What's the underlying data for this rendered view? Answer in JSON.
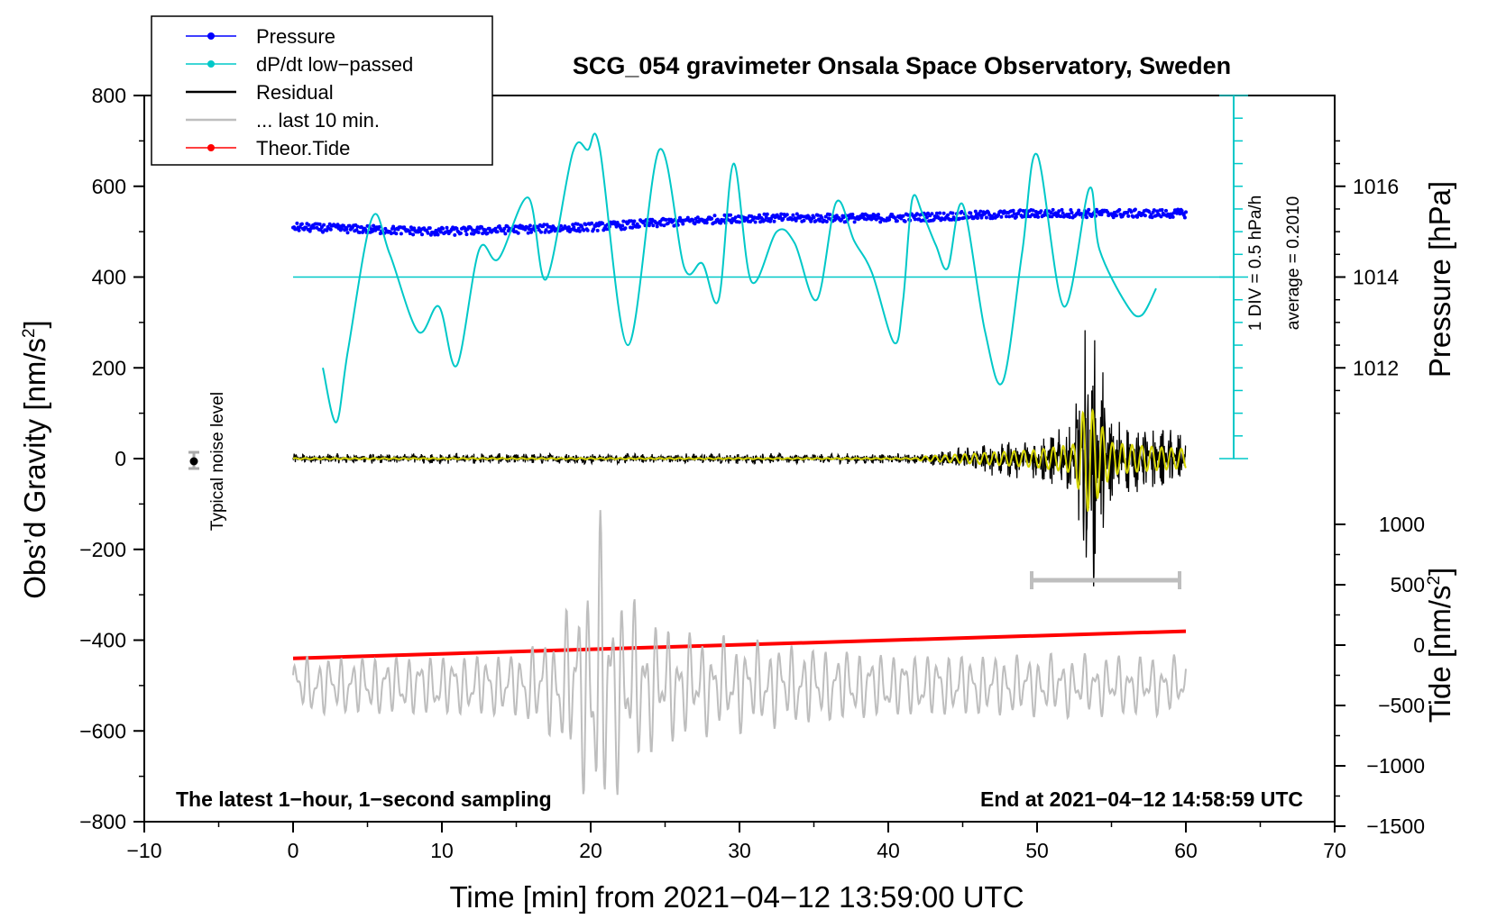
{
  "chart_data": {
    "type": "line",
    "title": "SCG_054 gravimeter Onsala Space Observatory, Sweden",
    "xlabel": "Time [min] from 2021−04−12 13:59:00 UTC",
    "ylabel_left": "Obs’d Gravity [nm/s",
    "ylabel_left_sup": "2",
    "ylabel_left_close": "]",
    "ylabel_right_pressure": "Pressure [hPa]",
    "ylabel_right_tide": "Tide [nm/s",
    "ylabel_right_tide_sup": "2",
    "ylabel_right_tide_close": "]",
    "xlim": [
      -10,
      70
    ],
    "ylim_left": [
      -800,
      800
    ],
    "x_ticks": [
      "−10",
      "0",
      "10",
      "20",
      "30",
      "40",
      "50",
      "60",
      "70"
    ],
    "y_ticks_left": [
      "800",
      "600",
      "400",
      "200",
      "0",
      "−200",
      "−400",
      "−600",
      "−800"
    ],
    "pressure_ticks": [
      "1016",
      "1014",
      "1012"
    ],
    "tide_ticks": [
      "1000",
      "500",
      "0",
      "−500",
      "−1000",
      "−1500"
    ],
    "legend": [
      {
        "label": "Pressure",
        "color": "#0000ff",
        "marker": true
      },
      {
        "label": "dP/dt low−passed",
        "color": "#00c8c8",
        "marker": true
      },
      {
        "label": "Residual",
        "color": "#000000",
        "marker": false
      },
      {
        "label": "... last 10 min.",
        "color": "#bebebe",
        "marker": false
      },
      {
        "label": "Theor.Tide",
        "color": "#ff0000",
        "marker": true
      }
    ],
    "annotations": {
      "noise_label": "Typical noise level",
      "div_label": "1 DIV = 0.5 hPa/h",
      "average_label": "average = 0.2010",
      "bottom_left": "The latest 1−hour, 1−second sampling",
      "bottom_right": "End at 2021−04−12 14:58:59 UTC"
    },
    "series": [
      {
        "name": "Pressure",
        "color": "#0000ff",
        "style": "dots",
        "unit": "hPa",
        "x": [
          0,
          10,
          20,
          30,
          40,
          50,
          60
        ],
        "values": [
          1015.1,
          1015.0,
          1015.1,
          1015.3,
          1015.3,
          1015.4,
          1015.4
        ]
      },
      {
        "name": "dP/dt low-passed",
        "color": "#00c8c8",
        "style": "line",
        "unit": "nm/s2 display",
        "x": [
          2,
          2.9,
          3.7,
          5.3,
          6.5,
          8.4,
          9.8,
          11.0,
          12.5,
          13.8,
          15.8,
          17.0,
          18.8,
          19.8,
          20.6,
          22.5,
          24.6,
          26.3,
          27.5,
          28.6,
          29.6,
          30.8,
          32.5,
          33.7,
          35.2,
          36.5,
          37.7,
          38.9,
          40.4,
          41.0,
          41.6,
          42.3,
          43.2,
          44.0,
          45.0,
          46.5,
          47.7,
          49.0,
          50.0,
          51.8,
          53.5,
          54.2,
          56.0,
          57.0,
          58.0
        ],
        "values": [
          200,
          80,
          240,
          530,
          450,
          280,
          335,
          205,
          460,
          440,
          575,
          395,
          675,
          680,
          685,
          250,
          680,
          420,
          430,
          350,
          650,
          390,
          500,
          475,
          350,
          565,
          480,
          410,
          255,
          350,
          570,
          540,
          470,
          420,
          560,
          280,
          170,
          455,
          670,
          335,
          595,
          460,
          340,
          315,
          375
        ]
      },
      {
        "name": "Residual",
        "color": "#000000",
        "style": "line",
        "unit": "nm/s2",
        "x": [
          0,
          42,
          50,
          52.5,
          53.0,
          53.5,
          54.0,
          55.0,
          57.0,
          60
        ],
        "envelope": [
          12,
          12,
          55,
          90,
          280,
          340,
          260,
          100,
          80,
          60
        ]
      },
      {
        "name": "... last 10 min.",
        "color": "#bebebe",
        "style": "line",
        "unit": "nm/s2 display",
        "x": [
          0,
          15,
          17.5,
          19.5,
          20.5,
          21.5,
          23,
          24.5,
          27,
          40,
          60
        ],
        "envelope": [
          70,
          80,
          130,
          250,
          420,
          260,
          200,
          150,
          120,
          80,
          70
        ]
      },
      {
        "name": "Theor.Tide",
        "color": "#ff0000",
        "style": "line",
        "unit": "nm/s2",
        "x": [
          0,
          60
        ],
        "values": [
          -110,
          115
        ]
      }
    ]
  }
}
